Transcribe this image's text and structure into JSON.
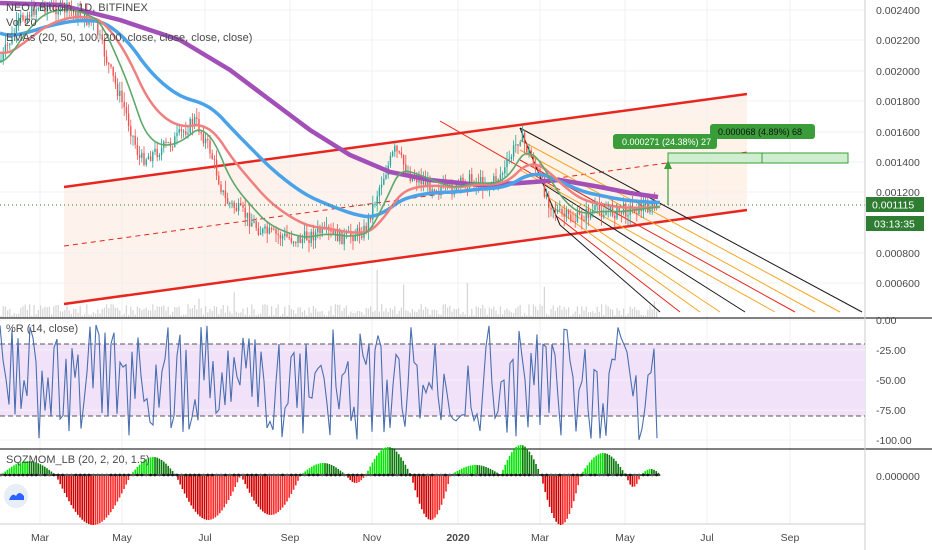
{
  "chart_data": {
    "type": "line",
    "title": "NEO / Bitcoin, 1D, BITFINEX",
    "symbol_overlay": "Vol 20",
    "indicators_label": "EMAs (20, 50, 100, 200, close, close, close, close)",
    "x_labels": [
      "Mar",
      "May",
      "Jul",
      "Sep",
      "Nov",
      "2020",
      "Mar",
      "May",
      "Jul",
      "Sep"
    ],
    "price_ticks": [
      "0.002400",
      "0.002200",
      "0.002000",
      "0.001800",
      "0.001600",
      "0.001400",
      "0.001200",
      "0.001115",
      "0.000800",
      "0.000600"
    ],
    "price_ylim": [
      0.00048,
      0.00245
    ],
    "last_price": "0.001115",
    "countdown": "03:13:35",
    "ema_colors": {
      "ema20": "#5fa86b",
      "ema50": "#f08080",
      "ema100": "#4aa3e8",
      "ema200": "#a24fb7"
    },
    "annotations": [
      {
        "text": "0.000271 (24.38%) 27"
      },
      {
        "text": "0.000068 (4.89%) 68"
      }
    ],
    "wr_panel": {
      "label": "%R (14, close)",
      "ticks": [
        "0.00",
        "-25.00",
        "-50.00",
        "-75.00",
        "-100.00"
      ],
      "ylim": [
        -100,
        0
      ],
      "band": [
        -80,
        -20
      ]
    },
    "sqz_panel": {
      "label": "SQZMOM_LB (20, 2, 20, 1.5)",
      "ticks": [
        "0.000000"
      ]
    },
    "colors": {
      "channel": "#e6261f",
      "pitchfork": "#1a1a1a",
      "fib_orange": "#f5a623",
      "wr_line": "#4a6fb0",
      "wr_fill": "#f1e2f9",
      "label_bg": "#3a9d3a",
      "price_label_bg": "#2e7d32"
    }
  }
}
